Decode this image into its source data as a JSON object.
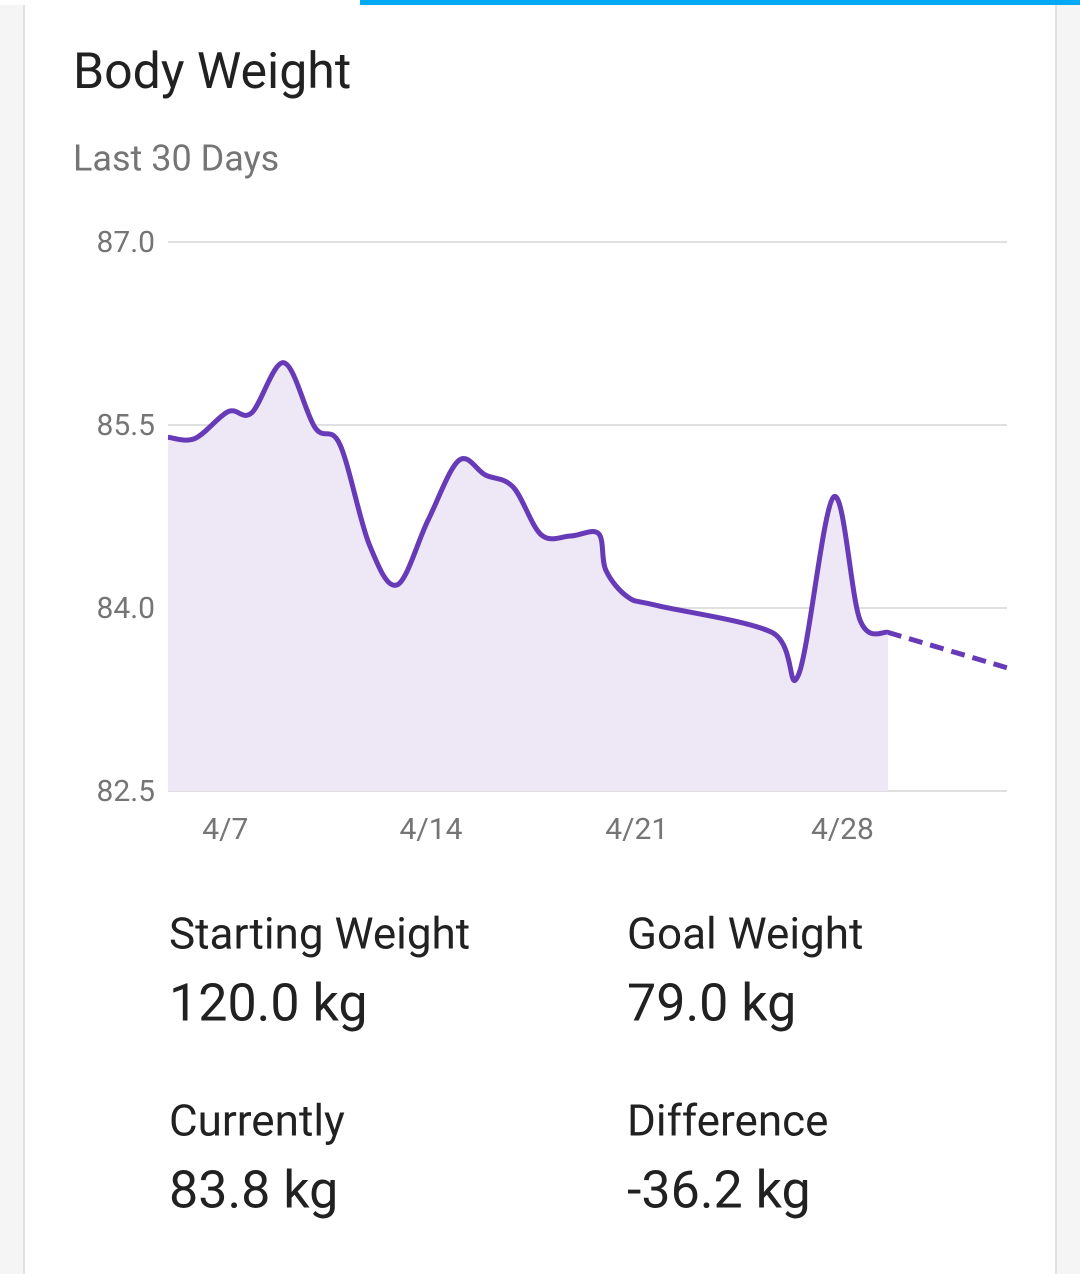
{
  "chart_data": {
    "type": "line",
    "title": "Body Weight",
    "subtitle": "Last 30 Days",
    "xlim": [
      5.05,
      33.6
    ],
    "ylim": [
      82.5,
      87
    ],
    "yticks": [
      {
        "value": 82.5,
        "label": "82.5"
      },
      {
        "value": 84,
        "label": "84.0"
      },
      {
        "value": 85.5,
        "label": "85.5"
      },
      {
        "value": 87,
        "label": "87.0"
      }
    ],
    "xticks": [
      {
        "value": 7,
        "label": "4/7"
      },
      {
        "value": 14,
        "label": "4/14"
      },
      {
        "value": 21,
        "label": "4/21"
      },
      {
        "value": 28,
        "label": "4/28"
      }
    ],
    "grid": true,
    "series": [
      {
        "color": "#673ab7",
        "fill": "#ede7f6",
        "dashed": false,
        "x": [
          5.05,
          5.97,
          7.1,
          7.9,
          9.0,
          10.05,
          10.9,
          11.9,
          12.85,
          13.9,
          14.95,
          15.85,
          16.8,
          17.75,
          18.75,
          19.7,
          19.95,
          20.7,
          21.7,
          25.6,
          26.5,
          27.7,
          28.6,
          29.55
        ],
        "values": [
          85.4,
          85.39,
          85.61,
          85.6,
          86.01,
          85.48,
          85.34,
          84.52,
          84.19,
          84.72,
          85.21,
          85.09,
          84.99,
          84.6,
          84.59,
          84.61,
          84.31,
          84.09,
          84.02,
          83.8,
          83.45,
          84.91,
          83.9,
          83.8
        ]
      },
      {
        "color": "#673ab7",
        "dashed": true,
        "x": [
          29.55,
          33.6
        ],
        "values": [
          83.8,
          83.51
        ]
      }
    ]
  },
  "stats": [
    {
      "label": "Starting Weight",
      "value": "120.0 kg"
    },
    {
      "label": "Goal Weight",
      "value": "79.0 kg"
    },
    {
      "label": "Currently",
      "value": "83.8 kg"
    },
    {
      "label": "Difference",
      "value": "-36.2 kg"
    }
  ]
}
